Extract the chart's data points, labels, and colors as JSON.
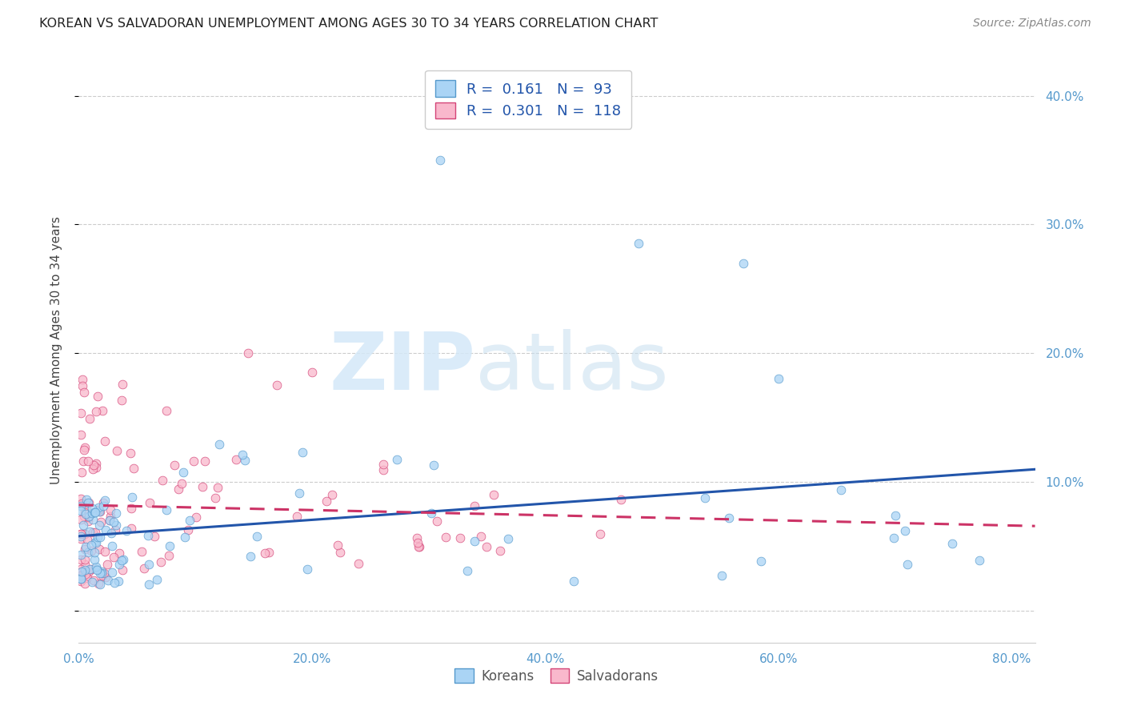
{
  "title": "KOREAN VS SALVADORAN UNEMPLOYMENT AMONG AGES 30 TO 34 YEARS CORRELATION CHART",
  "source": "Source: ZipAtlas.com",
  "ylabel": "Unemployment Among Ages 30 to 34 years",
  "ytick_values": [
    0.0,
    0.1,
    0.2,
    0.3,
    0.4
  ],
  "ytick_labels": [
    "",
    "10.0%",
    "20.0%",
    "30.0%",
    "40.0%"
  ],
  "xtick_values": [
    0.0,
    0.2,
    0.4,
    0.6,
    0.8
  ],
  "xtick_labels": [
    "0.0%",
    "20.0%",
    "40.0%",
    "60.0%",
    "80.0%"
  ],
  "xlim": [
    0.0,
    0.82
  ],
  "ylim": [
    -0.025,
    0.43
  ],
  "korean_color": "#aad4f5",
  "salvadoran_color": "#f9b8cc",
  "korean_edge_color": "#5599cc",
  "salvadoran_edge_color": "#d44477",
  "korean_line_color": "#2255aa",
  "salvadoran_line_color": "#cc3366",
  "korean_R": 0.161,
  "korean_N": 93,
  "salvadoran_R": 0.301,
  "salvadoran_N": 118,
  "legend_label_korean": "Koreans",
  "legend_label_salvadoran": "Salvadorans",
  "background_color": "#ffffff",
  "grid_color": "#cccccc",
  "title_fontsize": 11.5,
  "tick_fontsize": 11,
  "ylabel_fontsize": 11,
  "axis_label_color": "#5599cc",
  "legend_value_color": "#2255aa"
}
